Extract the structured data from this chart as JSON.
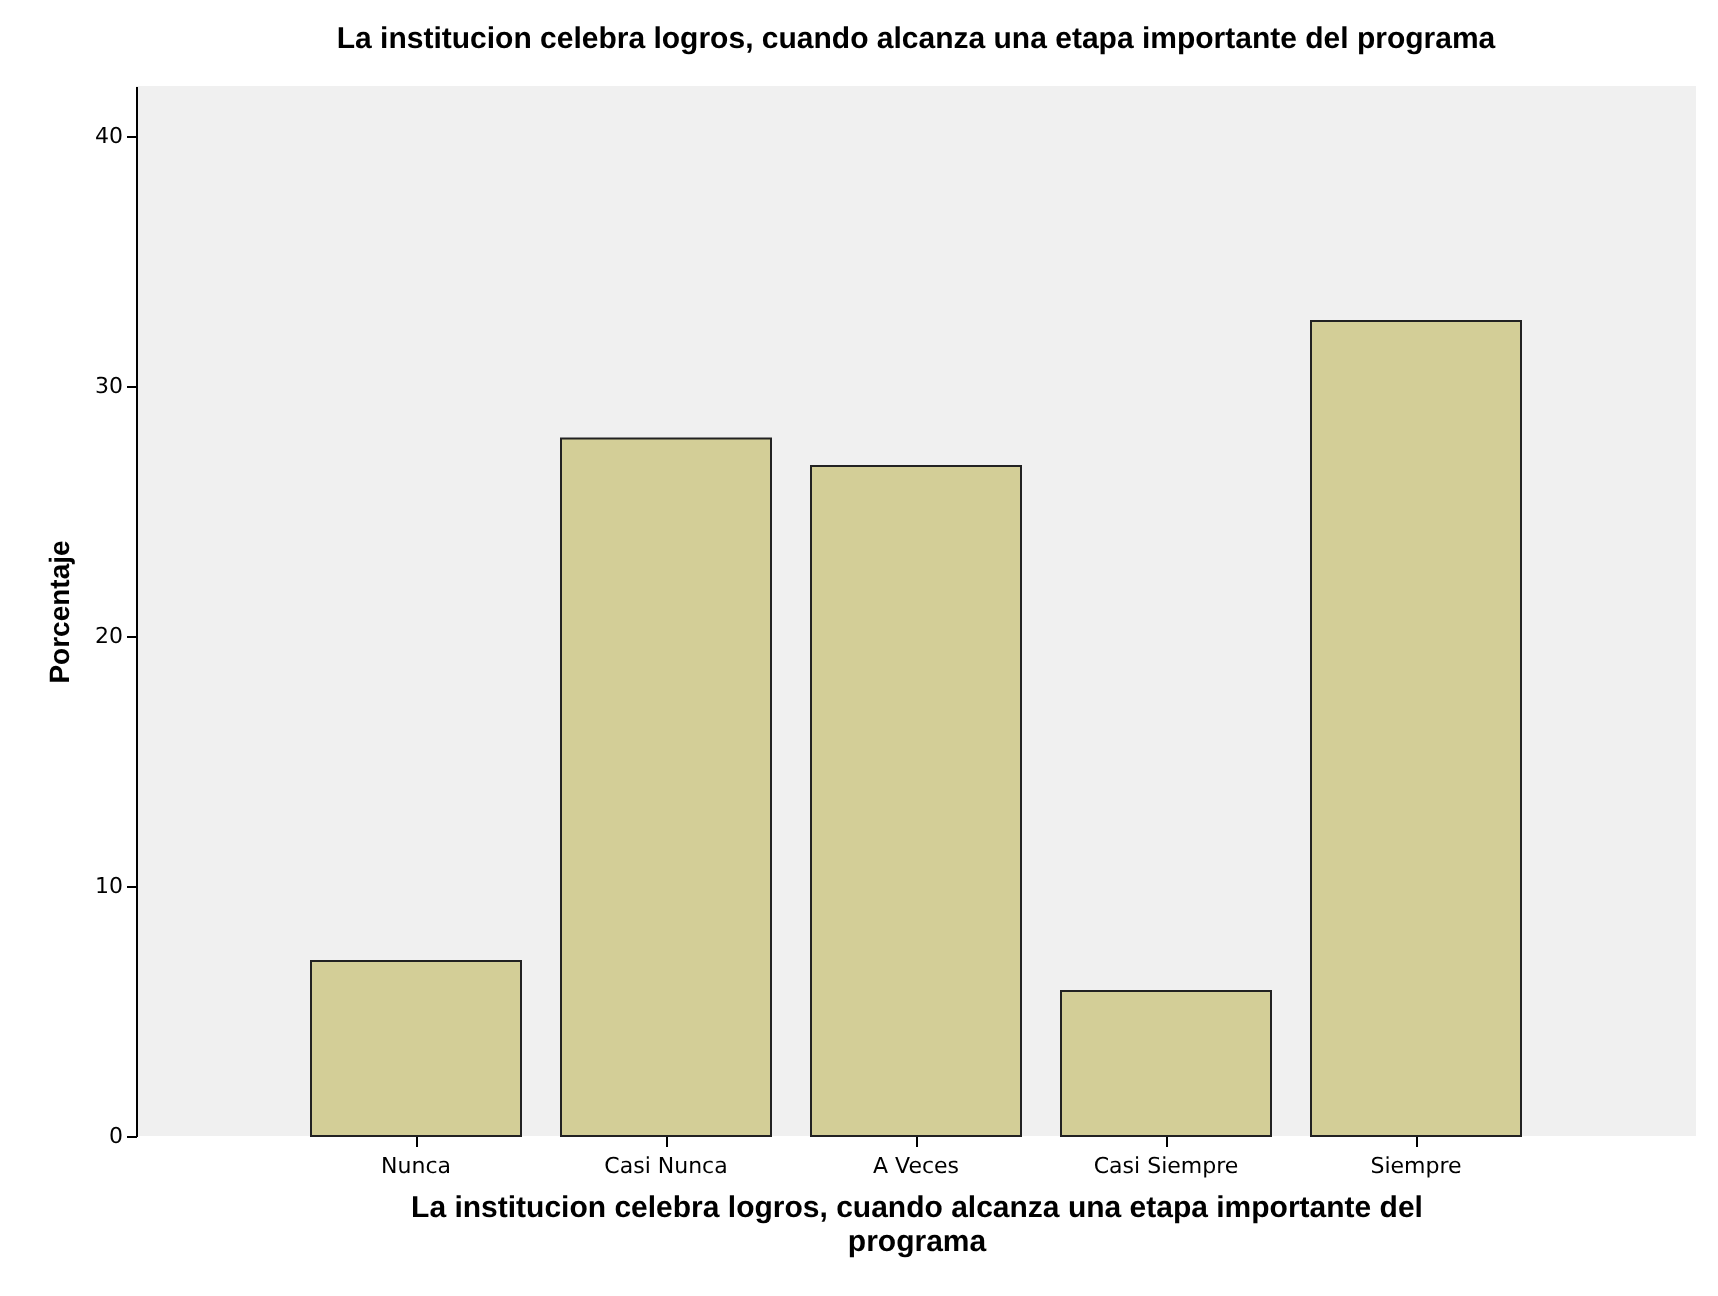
{
  "chart_data": {
    "type": "bar",
    "title": "La institucion celebra logros, cuando alcanza una etapa importante del programa",
    "xlabel": "La institucion celebra logros, cuando alcanza una etapa importante del programa",
    "ylabel": "Porcentaje",
    "categories": [
      "Nunca",
      "Casi Nunca",
      "A Veces",
      "Casi Siempre",
      "Siempre"
    ],
    "values": [
      7.0,
      27.9,
      26.8,
      5.8,
      32.6
    ],
    "color": "#d3ce97",
    "ylim": [
      0,
      42
    ],
    "yticks": [
      0,
      10,
      20,
      30,
      40
    ],
    "grid": false
  }
}
